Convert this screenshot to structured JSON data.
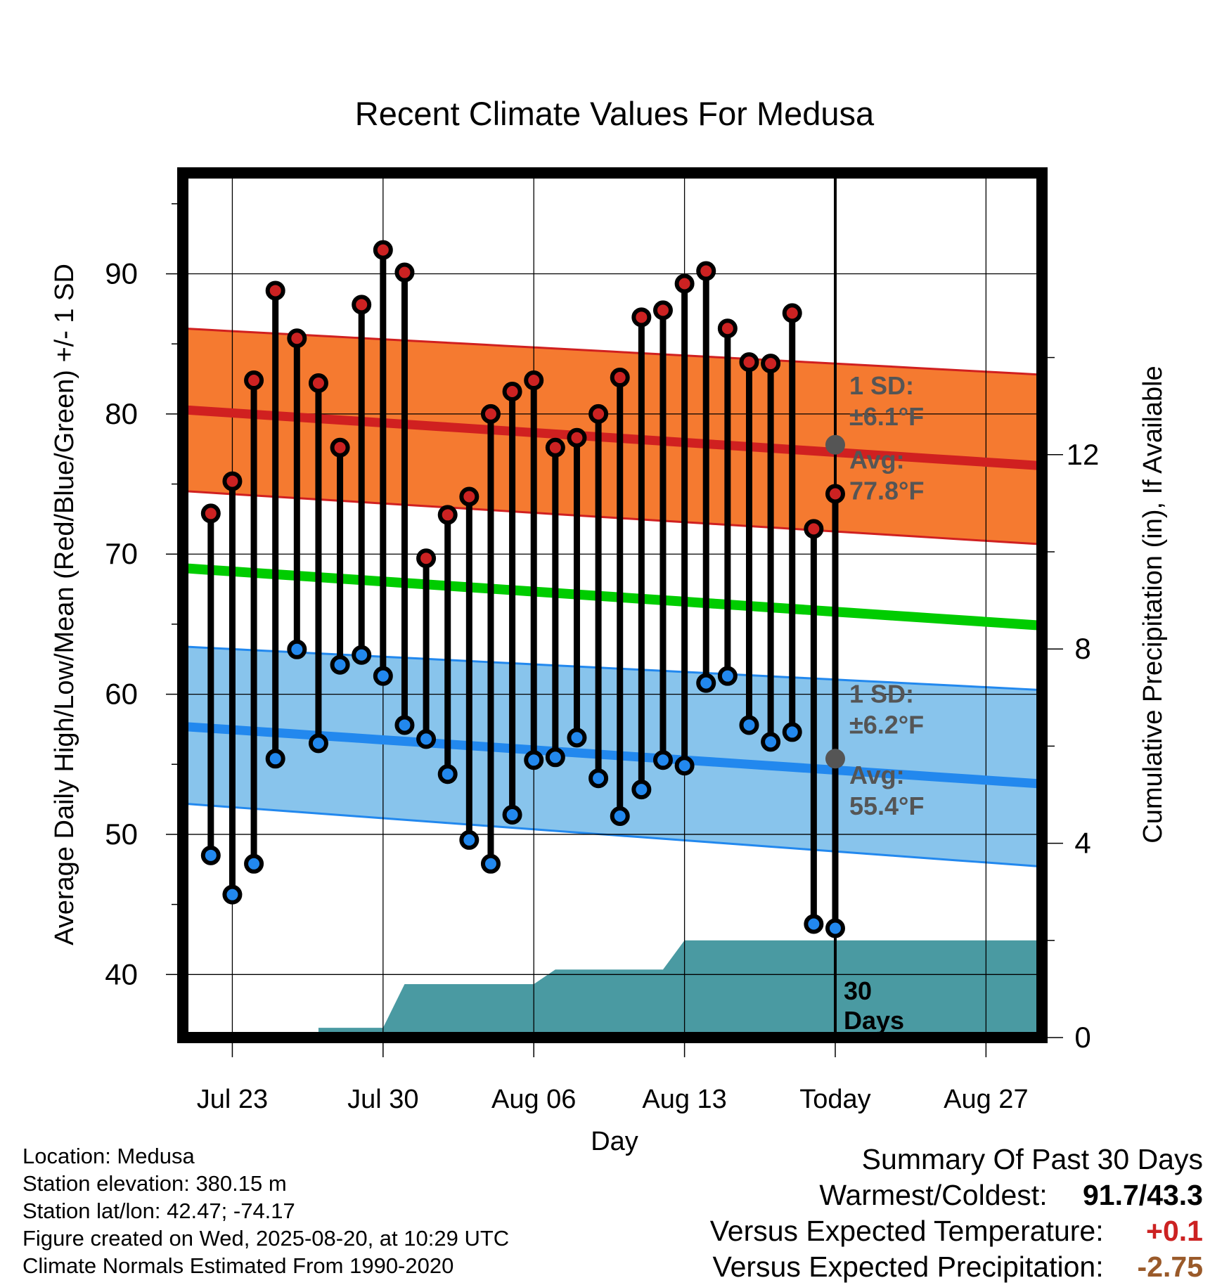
{
  "chart_data": {
    "type": "line",
    "title": "Recent Climate Values For Medusa",
    "xlabel": "Day",
    "ylabel": "Average Daily High/Low/Mean (Red/Blue/Green) +/- 1 SD",
    "y2label": "Cumulative Precipitation (in), If Available",
    "ylim": [
      35.5,
      97.2
    ],
    "y2lim": [
      0,
      17.8
    ],
    "y_ticks": [
      40,
      50,
      60,
      70,
      80,
      90
    ],
    "y2_ticks": [
      0,
      4,
      8,
      12
    ],
    "x_ticks": [
      {
        "label": "Jul 23",
        "day": 2
      },
      {
        "label": "Jul 30",
        "day": 9
      },
      {
        "label": "Aug 06",
        "day": 16
      },
      {
        "label": "Aug 13",
        "day": 23
      },
      {
        "label": "Today",
        "day": 30
      },
      {
        "label": "Aug 27",
        "day": 37
      }
    ],
    "today_day": 30,
    "days_label": "30 Days",
    "grid": true,
    "normals": {
      "high_mean": {
        "start": 80.3,
        "end": 76.3
      },
      "high_upper": {
        "start": 86.1,
        "end": 82.8
      },
      "high_lower": {
        "start": 74.5,
        "end": 70.7
      },
      "mean": {
        "start": 69.0,
        "end": 64.9
      },
      "low_mean": {
        "start": 57.7,
        "end": 53.6
      },
      "low_upper": {
        "start": 63.4,
        "end": 60.3
      },
      "low_lower": {
        "start": 52.2,
        "end": 47.7
      }
    },
    "annotations": {
      "high_sd": "1 SD:",
      "high_sd_value": "±6.1°F",
      "high_avg": "Avg:",
      "high_avg_value": "77.8°F",
      "high_avg_point": 77.8,
      "low_sd": "1 SD:",
      "low_sd_value": "±6.2°F",
      "low_avg": "Avg:",
      "low_avg_value": "55.4°F",
      "low_avg_point": 55.4
    },
    "series": [
      {
        "name": "High",
        "color": "#cc2222",
        "days": [
          1,
          2,
          3,
          4,
          5,
          6,
          7,
          8,
          9,
          10,
          11,
          12,
          13,
          14,
          15,
          16,
          17,
          18,
          19,
          20,
          21,
          22,
          23,
          24,
          25,
          26,
          27,
          28,
          29
        ],
        "values": [
          72.9,
          75.2,
          82.4,
          88.8,
          85.4,
          82.2,
          77.6,
          87.8,
          91.7,
          90.1,
          69.7,
          72.8,
          74.1,
          80.0,
          81.6,
          82.4,
          77.6,
          78.3,
          80.0,
          82.6,
          86.9,
          87.4,
          89.3,
          90.2,
          86.1,
          83.7,
          83.6,
          87.2,
          71.8
        ]
      },
      {
        "name": "Low",
        "color": "#2288ee",
        "days": [
          1,
          2,
          3,
          4,
          5,
          6,
          7,
          8,
          9,
          10,
          11,
          12,
          13,
          14,
          15,
          16,
          17,
          18,
          19,
          20,
          21,
          22,
          23,
          24,
          25,
          26,
          27,
          28,
          29
        ],
        "values": [
          48.5,
          45.7,
          47.9,
          55.4,
          63.2,
          56.5,
          62.1,
          62.8,
          61.3,
          57.8,
          56.8,
          54.3,
          49.6,
          47.9,
          51.4,
          55.3,
          55.5,
          56.9,
          54.0,
          51.3,
          53.2,
          55.3,
          54.9,
          60.8,
          61.3,
          57.8,
          56.6,
          57.3,
          43.6
        ]
      },
      {
        "name": "Extra",
        "color": "#000000",
        "days": [
          30
        ],
        "highs": [
          74.3
        ],
        "lows": [
          43.3
        ]
      }
    ],
    "precip": {
      "steps": [
        [
          0,
          0
        ],
        [
          6,
          0
        ],
        [
          6,
          0.2
        ],
        [
          9,
          0.2
        ],
        [
          10,
          1.1
        ],
        [
          16,
          1.1
        ],
        [
          17,
          1.4
        ],
        [
          22,
          1.4
        ],
        [
          23,
          2.0
        ],
        [
          40,
          2.0
        ]
      ]
    }
  },
  "footer": {
    "location": "Location: Medusa",
    "elevation": "Station elevation: 380.15 m",
    "latlon": "Station lat/lon: 42.47; -74.17",
    "created": "Figure created on Wed, 2025-08-20, at 10:29 UTC",
    "normals": "Climate Normals Estimated From 1990-2020"
  },
  "summary": {
    "heading": "Summary Of Past 30 Days",
    "warm_label": "Warmest/Coldest:",
    "warm_value": "91.7/43.3",
    "temp_label": "Versus Expected Temperature:",
    "temp_value": "+0.1",
    "precip_label": "Versus Expected Precipitation:",
    "precip_value": "-2.75"
  }
}
